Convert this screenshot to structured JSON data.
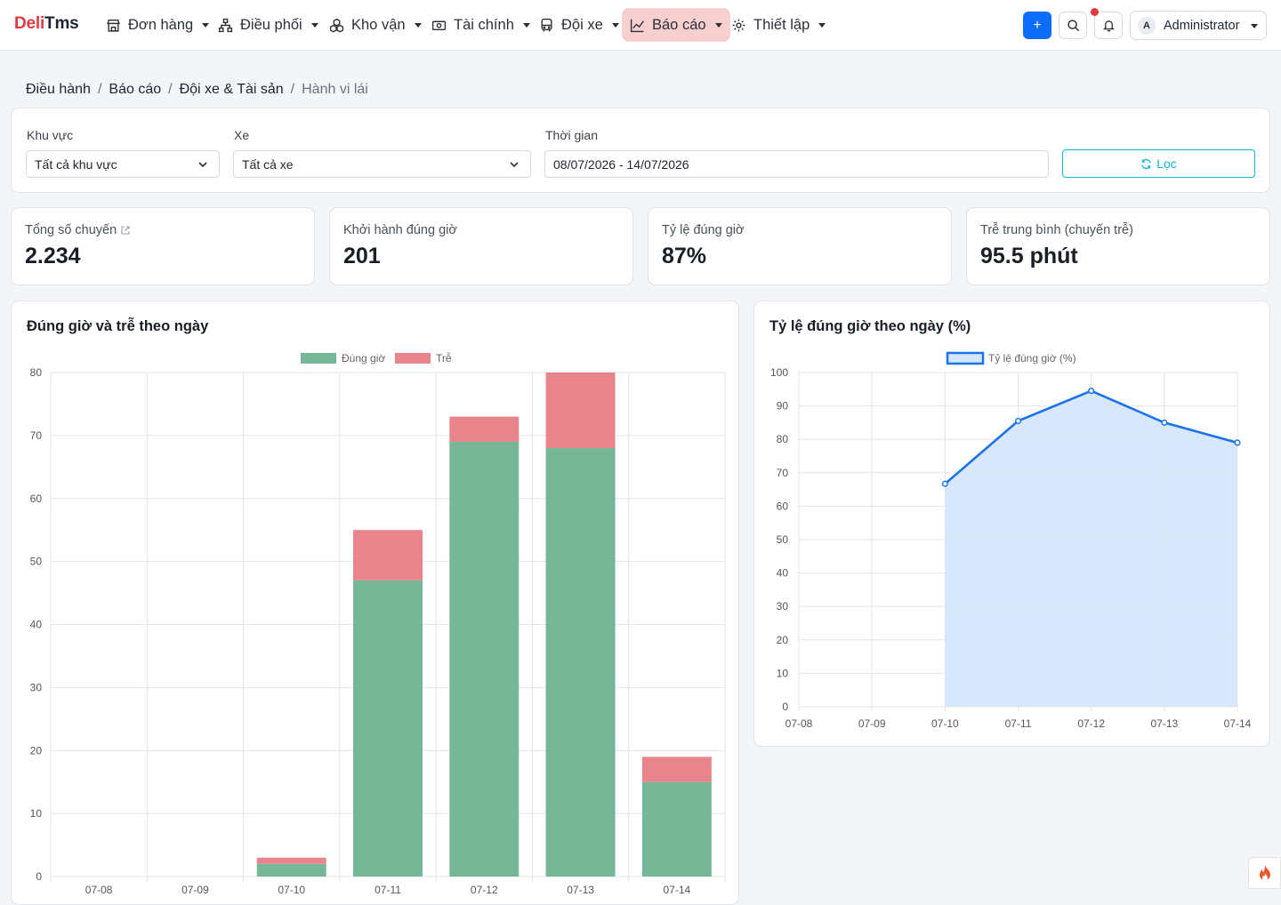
{
  "brand": {
    "part1": "Deli",
    "part2": "Tms"
  },
  "nav": {
    "items": [
      {
        "label": "Đơn hàng",
        "icon": "store-icon"
      },
      {
        "label": "Điều phối",
        "icon": "sitemap-icon"
      },
      {
        "label": "Kho vận",
        "icon": "boxes-icon"
      },
      {
        "label": "Tài chính",
        "icon": "cash-icon"
      },
      {
        "label": "Đội xe",
        "icon": "bus-icon"
      },
      {
        "label": "Báo cáo",
        "icon": "chart-line-icon",
        "active": true
      },
      {
        "label": "Thiết lập",
        "icon": "gear-icon"
      }
    ],
    "add_label": "+",
    "user": {
      "avatar": "A",
      "name": "Administrator"
    }
  },
  "breadcrumb": [
    "Điều hành",
    "Báo cáo",
    "Đội xe & Tài sản",
    "Hành vi lái"
  ],
  "filters": {
    "region_label": "Khu vực",
    "region_value": "Tất cả khu vực",
    "vehicle_label": "Xe",
    "vehicle_value": "Tất cả xe",
    "time_label": "Thời gian",
    "time_value": "08/07/2026 - 14/07/2026",
    "filter_button": "Lọc"
  },
  "stats": [
    {
      "label": "Tổng số chuyến",
      "value": "2.234"
    },
    {
      "label": "Khởi hành đúng giờ",
      "value": "201"
    },
    {
      "label": "Tỷ lệ đúng giờ",
      "value": "87%"
    },
    {
      "label": "Trễ trung bình (chuyến trễ)",
      "value": "95.5 phút"
    }
  ],
  "colors": {
    "accent": "#0d6efd",
    "brand_red": "#e0393e",
    "ontime": "#76b797",
    "late": "#e8858c",
    "line": "#1a73e8",
    "area": "#d6e6fb",
    "filter": "#0fb5cc"
  },
  "chart_data": [
    {
      "type": "bar",
      "stacked": true,
      "title": "Đúng giờ và trễ theo ngày",
      "categories": [
        "07-08",
        "07-09",
        "07-10",
        "07-11",
        "07-12",
        "07-13",
        "07-14"
      ],
      "series": [
        {
          "name": "Đúng giờ",
          "values": [
            0,
            0,
            2,
            47,
            69,
            68,
            15
          ]
        },
        {
          "name": "Trễ",
          "values": [
            0,
            0,
            1,
            8,
            4,
            12,
            4
          ]
        }
      ],
      "ylim": [
        0,
        80
      ],
      "yticks": [
        0,
        10,
        20,
        30,
        40,
        50,
        60,
        70,
        80
      ],
      "legend": "top-center",
      "grid": true
    },
    {
      "type": "area",
      "title": "Tỷ lệ đúng giờ theo ngày (%)",
      "categories": [
        "07-08",
        "07-09",
        "07-10",
        "07-11",
        "07-12",
        "07-13",
        "07-14"
      ],
      "series": [
        {
          "name": "Tỷ lệ đúng giờ (%)",
          "values": [
            null,
            null,
            66.7,
            85.5,
            94.5,
            85,
            79
          ]
        }
      ],
      "ylim": [
        0,
        100
      ],
      "yticks": [
        0,
        10,
        20,
        30,
        40,
        50,
        60,
        70,
        80,
        90,
        100
      ],
      "legend": "top-center",
      "grid": true
    }
  ]
}
